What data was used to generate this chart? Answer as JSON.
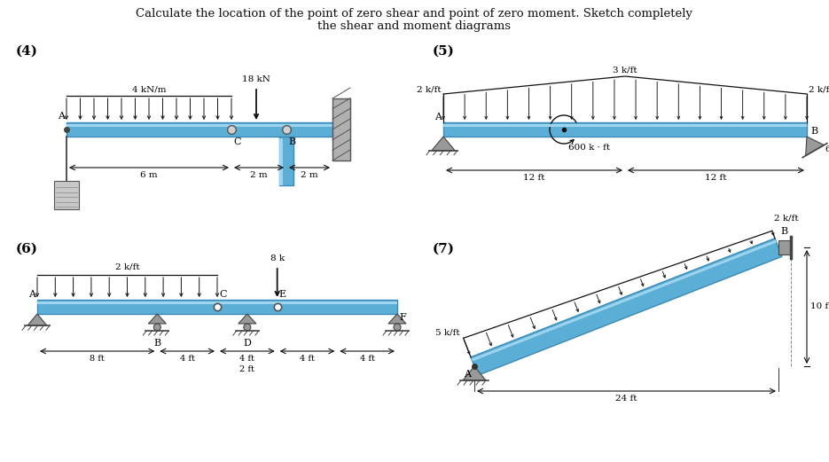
{
  "title_line1": "Calculate the location of the point of zero shear and point of zero moment. Sketch completely",
  "title_line2": "the shear and moment diagrams",
  "bg_color": "#ffffff",
  "beam_color": "#5bafd6",
  "beam_edge_color": "#3a8ab8",
  "beam_highlight": "#9fd4ee",
  "load_color": "#111111",
  "dim_color": "#111111",
  "support_color": "#999999",
  "support_edge": "#444444",
  "label4": "(4)",
  "label5": "(5)",
  "label6": "(6)",
  "label7": "(7)"
}
